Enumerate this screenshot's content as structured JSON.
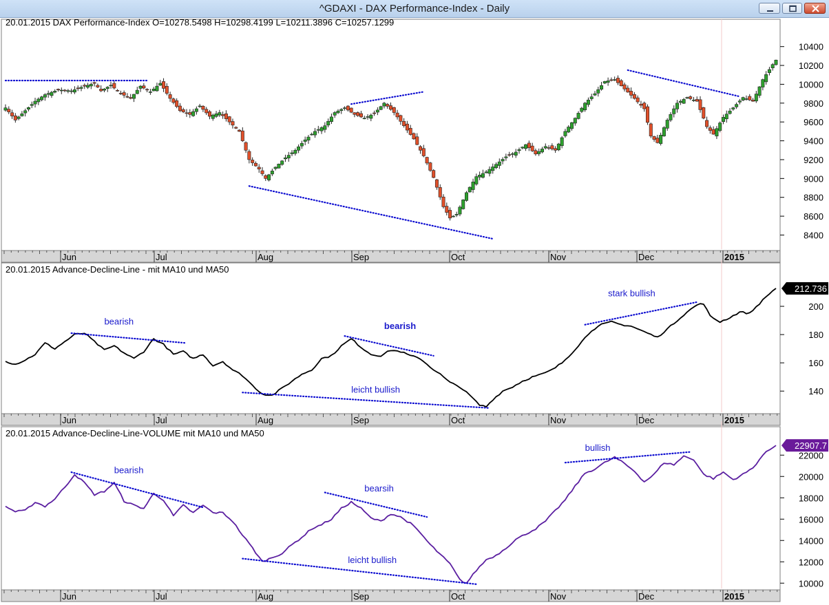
{
  "window": {
    "title": "^GDAXI - DAX Performance-Index - Daily"
  },
  "months": [
    "Jun",
    "Jul",
    "Aug",
    "Sep",
    "Oct",
    "Nov",
    "Dec",
    "2015"
  ],
  "chart_data": [
    {
      "type": "candlestick",
      "title": "20.01.2015 DAX Performance-Index  O=10278.5498  H=10298.4199  L=10211.3896  C=10257.1299",
      "ylim": [
        8250,
        10500
      ],
      "yticks": [
        8400,
        8600,
        8800,
        9000,
        9200,
        9400,
        9600,
        9800,
        10000,
        10200,
        10400
      ],
      "x_tick_labels": [
        "Jun",
        "Jul",
        "Aug",
        "Sep",
        "Oct",
        "Nov",
        "Dec",
        "2015"
      ],
      "bull_color": "#2ea02e",
      "bear_color": "#e0502a",
      "close_anchors": [
        [
          0,
          9750
        ],
        [
          3,
          9620
        ],
        [
          6,
          9720
        ],
        [
          9,
          9820
        ],
        [
          12,
          9890
        ],
        [
          16,
          9940
        ],
        [
          20,
          9930
        ],
        [
          24,
          9980
        ],
        [
          27,
          10010
        ],
        [
          29,
          9930
        ],
        [
          32,
          9990
        ],
        [
          35,
          9900
        ],
        [
          38,
          9850
        ],
        [
          41,
          9980
        ],
        [
          44,
          9920
        ],
        [
          47,
          10010
        ],
        [
          50,
          9850
        ],
        [
          53,
          9720
        ],
        [
          56,
          9680
        ],
        [
          59,
          9770
        ],
        [
          62,
          9660
        ],
        [
          65,
          9700
        ],
        [
          68,
          9600
        ],
        [
          71,
          9500
        ],
        [
          74,
          9200
        ],
        [
          77,
          9100
        ],
        [
          79,
          9000
        ],
        [
          82,
          9120
        ],
        [
          85,
          9220
        ],
        [
          88,
          9300
        ],
        [
          91,
          9410
        ],
        [
          94,
          9500
        ],
        [
          97,
          9560
        ],
        [
          100,
          9700
        ],
        [
          103,
          9750
        ],
        [
          106,
          9680
        ],
        [
          109,
          9640
        ],
        [
          112,
          9690
        ],
        [
          115,
          9800
        ],
        [
          118,
          9700
        ],
        [
          121,
          9560
        ],
        [
          124,
          9420
        ],
        [
          127,
          9240
        ],
        [
          130,
          9010
        ],
        [
          133,
          8700
        ],
        [
          135,
          8580
        ],
        [
          137,
          8620
        ],
        [
          140,
          8850
        ],
        [
          143,
          9020
        ],
        [
          146,
          9070
        ],
        [
          149,
          9150
        ],
        [
          152,
          9230
        ],
        [
          155,
          9280
        ],
        [
          158,
          9360
        ],
        [
          161,
          9260
        ],
        [
          164,
          9340
        ],
        [
          167,
          9300
        ],
        [
          170,
          9500
        ],
        [
          173,
          9640
        ],
        [
          176,
          9800
        ],
        [
          179,
          9900
        ],
        [
          182,
          10030
        ],
        [
          185,
          10050
        ],
        [
          188,
          9950
        ],
        [
          191,
          9850
        ],
        [
          194,
          9740
        ],
        [
          196,
          9450
        ],
        [
          198,
          9380
        ],
        [
          201,
          9620
        ],
        [
          204,
          9800
        ],
        [
          207,
          9860
        ],
        [
          210,
          9820
        ],
        [
          213,
          9550
        ],
        [
          215,
          9470
        ],
        [
          218,
          9650
        ],
        [
          221,
          9750
        ],
        [
          224,
          9860
        ],
        [
          227,
          9820
        ],
        [
          230,
          10050
        ],
        [
          233,
          10210
        ],
        [
          234,
          10257
        ]
      ],
      "annotations": [
        {
          "type": "dotted-line",
          "points": [
            [
              0,
              10040
            ],
            [
              43,
              10040
            ]
          ]
        },
        {
          "type": "dotted-line",
          "points": [
            [
              74,
              8920
            ],
            [
              148,
              8360
            ]
          ]
        },
        {
          "type": "dotted-line",
          "points": [
            [
              105,
              9790
            ],
            [
              127,
              9920
            ]
          ]
        },
        {
          "type": "dotted-line",
          "points": [
            [
              189,
              10150
            ],
            [
              223,
              9870
            ]
          ]
        }
      ]
    },
    {
      "type": "line",
      "title": "20.01.2015 Advance-Decline-Line - mit MA10 und MA50",
      "ylim": [
        125,
        220
      ],
      "yticks": [
        140,
        160,
        180,
        200
      ],
      "last_value": "212.736",
      "last_value_color": "#000000",
      "line_color": "#000000",
      "x_tick_labels": [
        "Jun",
        "Jul",
        "Aug",
        "Sep",
        "Oct",
        "Nov",
        "Dec",
        "2015"
      ],
      "anchors": [
        [
          0,
          161
        ],
        [
          3,
          159
        ],
        [
          6,
          162
        ],
        [
          9,
          166
        ],
        [
          12,
          174
        ],
        [
          15,
          170
        ],
        [
          18,
          175
        ],
        [
          21,
          180
        ],
        [
          24,
          181
        ],
        [
          27,
          175
        ],
        [
          30,
          169
        ],
        [
          33,
          172
        ],
        [
          36,
          167
        ],
        [
          39,
          163
        ],
        [
          42,
          168
        ],
        [
          45,
          177
        ],
        [
          48,
          173
        ],
        [
          51,
          166
        ],
        [
          54,
          168
        ],
        [
          57,
          163
        ],
        [
          60,
          166
        ],
        [
          63,
          158
        ],
        [
          66,
          161
        ],
        [
          69,
          155
        ],
        [
          72,
          151
        ],
        [
          75,
          144
        ],
        [
          78,
          138
        ],
        [
          81,
          137
        ],
        [
          84,
          142
        ],
        [
          87,
          147
        ],
        [
          90,
          152
        ],
        [
          93,
          155
        ],
        [
          96,
          163
        ],
        [
          99,
          165
        ],
        [
          102,
          172
        ],
        [
          105,
          177
        ],
        [
          108,
          171
        ],
        [
          111,
          166
        ],
        [
          114,
          165
        ],
        [
          117,
          169
        ],
        [
          120,
          168
        ],
        [
          123,
          165
        ],
        [
          126,
          163
        ],
        [
          129,
          157
        ],
        [
          132,
          152
        ],
        [
          135,
          146
        ],
        [
          138,
          143
        ],
        [
          141,
          137
        ],
        [
          144,
          130
        ],
        [
          146,
          129
        ],
        [
          148,
          134
        ],
        [
          151,
          140
        ],
        [
          154,
          143
        ],
        [
          157,
          147
        ],
        [
          160,
          150
        ],
        [
          163,
          152
        ],
        [
          166,
          155
        ],
        [
          169,
          160
        ],
        [
          172,
          167
        ],
        [
          175,
          175
        ],
        [
          178,
          183
        ],
        [
          181,
          187
        ],
        [
          184,
          189
        ],
        [
          187,
          187
        ],
        [
          190,
          186
        ],
        [
          193,
          183
        ],
        [
          196,
          180
        ],
        [
          198,
          178
        ],
        [
          201,
          184
        ],
        [
          204,
          190
        ],
        [
          207,
          196
        ],
        [
          210,
          201
        ],
        [
          212,
          202
        ],
        [
          214,
          193
        ],
        [
          217,
          189
        ],
        [
          220,
          192
        ],
        [
          223,
          196
        ],
        [
          226,
          195
        ],
        [
          229,
          202
        ],
        [
          232,
          209
        ],
        [
          234,
          212.7
        ]
      ],
      "annotations": [
        {
          "type": "dotted-line",
          "points": [
            [
              20,
              181
            ],
            [
              55,
              174
            ]
          ],
          "label": "bearish",
          "label_at": [
            30,
            187
          ]
        },
        {
          "type": "dotted-line",
          "points": [
            [
              103,
              179
            ],
            [
              130,
              165
            ]
          ],
          "label": "bearish",
          "label_at": [
            115,
            184
          ],
          "label_bold": true
        },
        {
          "type": "dotted-line",
          "points": [
            [
              72,
              139
            ],
            [
              147,
              128
            ]
          ],
          "label": "leicht bullish",
          "label_at": [
            105,
            139
          ]
        },
        {
          "type": "dotted-line",
          "points": [
            [
              176,
              187
            ],
            [
              210,
              203
            ]
          ],
          "label": "stark bullish",
          "label_at": [
            183,
            207
          ]
        }
      ]
    },
    {
      "type": "line",
      "title": "20.01.2015 Advance-Decline-Line-VOLUME  mit MA10 und MA50",
      "ylim": [
        9500,
        23500
      ],
      "yticks": [
        10000,
        12000,
        14000,
        16000,
        18000,
        20000,
        22000
      ],
      "last_value": "22907.7",
      "last_value_color": "#6a1a9a",
      "line_color": "#5a1ea0",
      "x_tick_labels": [
        "Jun",
        "Jul",
        "Aug",
        "Sep",
        "Oct",
        "Nov",
        "Dec",
        "2015"
      ],
      "anchors": [
        [
          0,
          17200
        ],
        [
          3,
          16700
        ],
        [
          6,
          16800
        ],
        [
          9,
          17600
        ],
        [
          12,
          17200
        ],
        [
          15,
          17900
        ],
        [
          18,
          19000
        ],
        [
          21,
          20200
        ],
        [
          24,
          19400
        ],
        [
          27,
          18300
        ],
        [
          30,
          18600
        ],
        [
          33,
          19400
        ],
        [
          36,
          17700
        ],
        [
          39,
          17300
        ],
        [
          42,
          17000
        ],
        [
          45,
          18400
        ],
        [
          48,
          17800
        ],
        [
          51,
          16300
        ],
        [
          54,
          17300
        ],
        [
          57,
          16600
        ],
        [
          60,
          17300
        ],
        [
          63,
          16600
        ],
        [
          66,
          16600
        ],
        [
          69,
          15800
        ],
        [
          72,
          14500
        ],
        [
          75,
          13300
        ],
        [
          78,
          12000
        ],
        [
          81,
          12400
        ],
        [
          84,
          12800
        ],
        [
          87,
          13600
        ],
        [
          90,
          14300
        ],
        [
          93,
          15100
        ],
        [
          96,
          15500
        ],
        [
          99,
          16000
        ],
        [
          102,
          17000
        ],
        [
          105,
          17600
        ],
        [
          108,
          17000
        ],
        [
          111,
          16100
        ],
        [
          114,
          15800
        ],
        [
          117,
          16500
        ],
        [
          120,
          16200
        ],
        [
          123,
          15600
        ],
        [
          126,
          14700
        ],
        [
          129,
          13600
        ],
        [
          132,
          12700
        ],
        [
          135,
          11800
        ],
        [
          138,
          10300
        ],
        [
          140,
          10000
        ],
        [
          143,
          11200
        ],
        [
          146,
          12200
        ],
        [
          149,
          12600
        ],
        [
          152,
          13300
        ],
        [
          155,
          14100
        ],
        [
          158,
          14600
        ],
        [
          161,
          15100
        ],
        [
          164,
          15800
        ],
        [
          167,
          16800
        ],
        [
          170,
          17800
        ],
        [
          173,
          19100
        ],
        [
          176,
          20300
        ],
        [
          179,
          20700
        ],
        [
          182,
          21300
        ],
        [
          185,
          21800
        ],
        [
          188,
          21200
        ],
        [
          191,
          20500
        ],
        [
          194,
          19500
        ],
        [
          197,
          20200
        ],
        [
          200,
          21300
        ],
        [
          203,
          21100
        ],
        [
          206,
          21900
        ],
        [
          209,
          21600
        ],
        [
          212,
          20200
        ],
        [
          215,
          19800
        ],
        [
          218,
          20400
        ],
        [
          221,
          19700
        ],
        [
          224,
          20200
        ],
        [
          227,
          20800
        ],
        [
          230,
          22000
        ],
        [
          232,
          22500
        ],
        [
          234,
          22907.7
        ]
      ],
      "annotations": [
        {
          "type": "dotted-line",
          "points": [
            [
              20,
              20400
            ],
            [
              60,
              17100
            ]
          ],
          "label": "bearish",
          "label_at": [
            33,
            20300
          ]
        },
        {
          "type": "dotted-line",
          "points": [
            [
              97,
              18500
            ],
            [
              128,
              16200
            ]
          ],
          "label": "bearsih",
          "label_at": [
            109,
            18600
          ]
        },
        {
          "type": "dotted-line",
          "points": [
            [
              72,
              12300
            ],
            [
              143,
              9900
            ]
          ],
          "label": "leicht bullish",
          "label_at": [
            104,
            11900
          ]
        },
        {
          "type": "dotted-line",
          "points": [
            [
              170,
              21300
            ],
            [
              208,
              22300
            ]
          ],
          "label": "bullish",
          "label_at": [
            176,
            22400
          ]
        }
      ]
    }
  ]
}
